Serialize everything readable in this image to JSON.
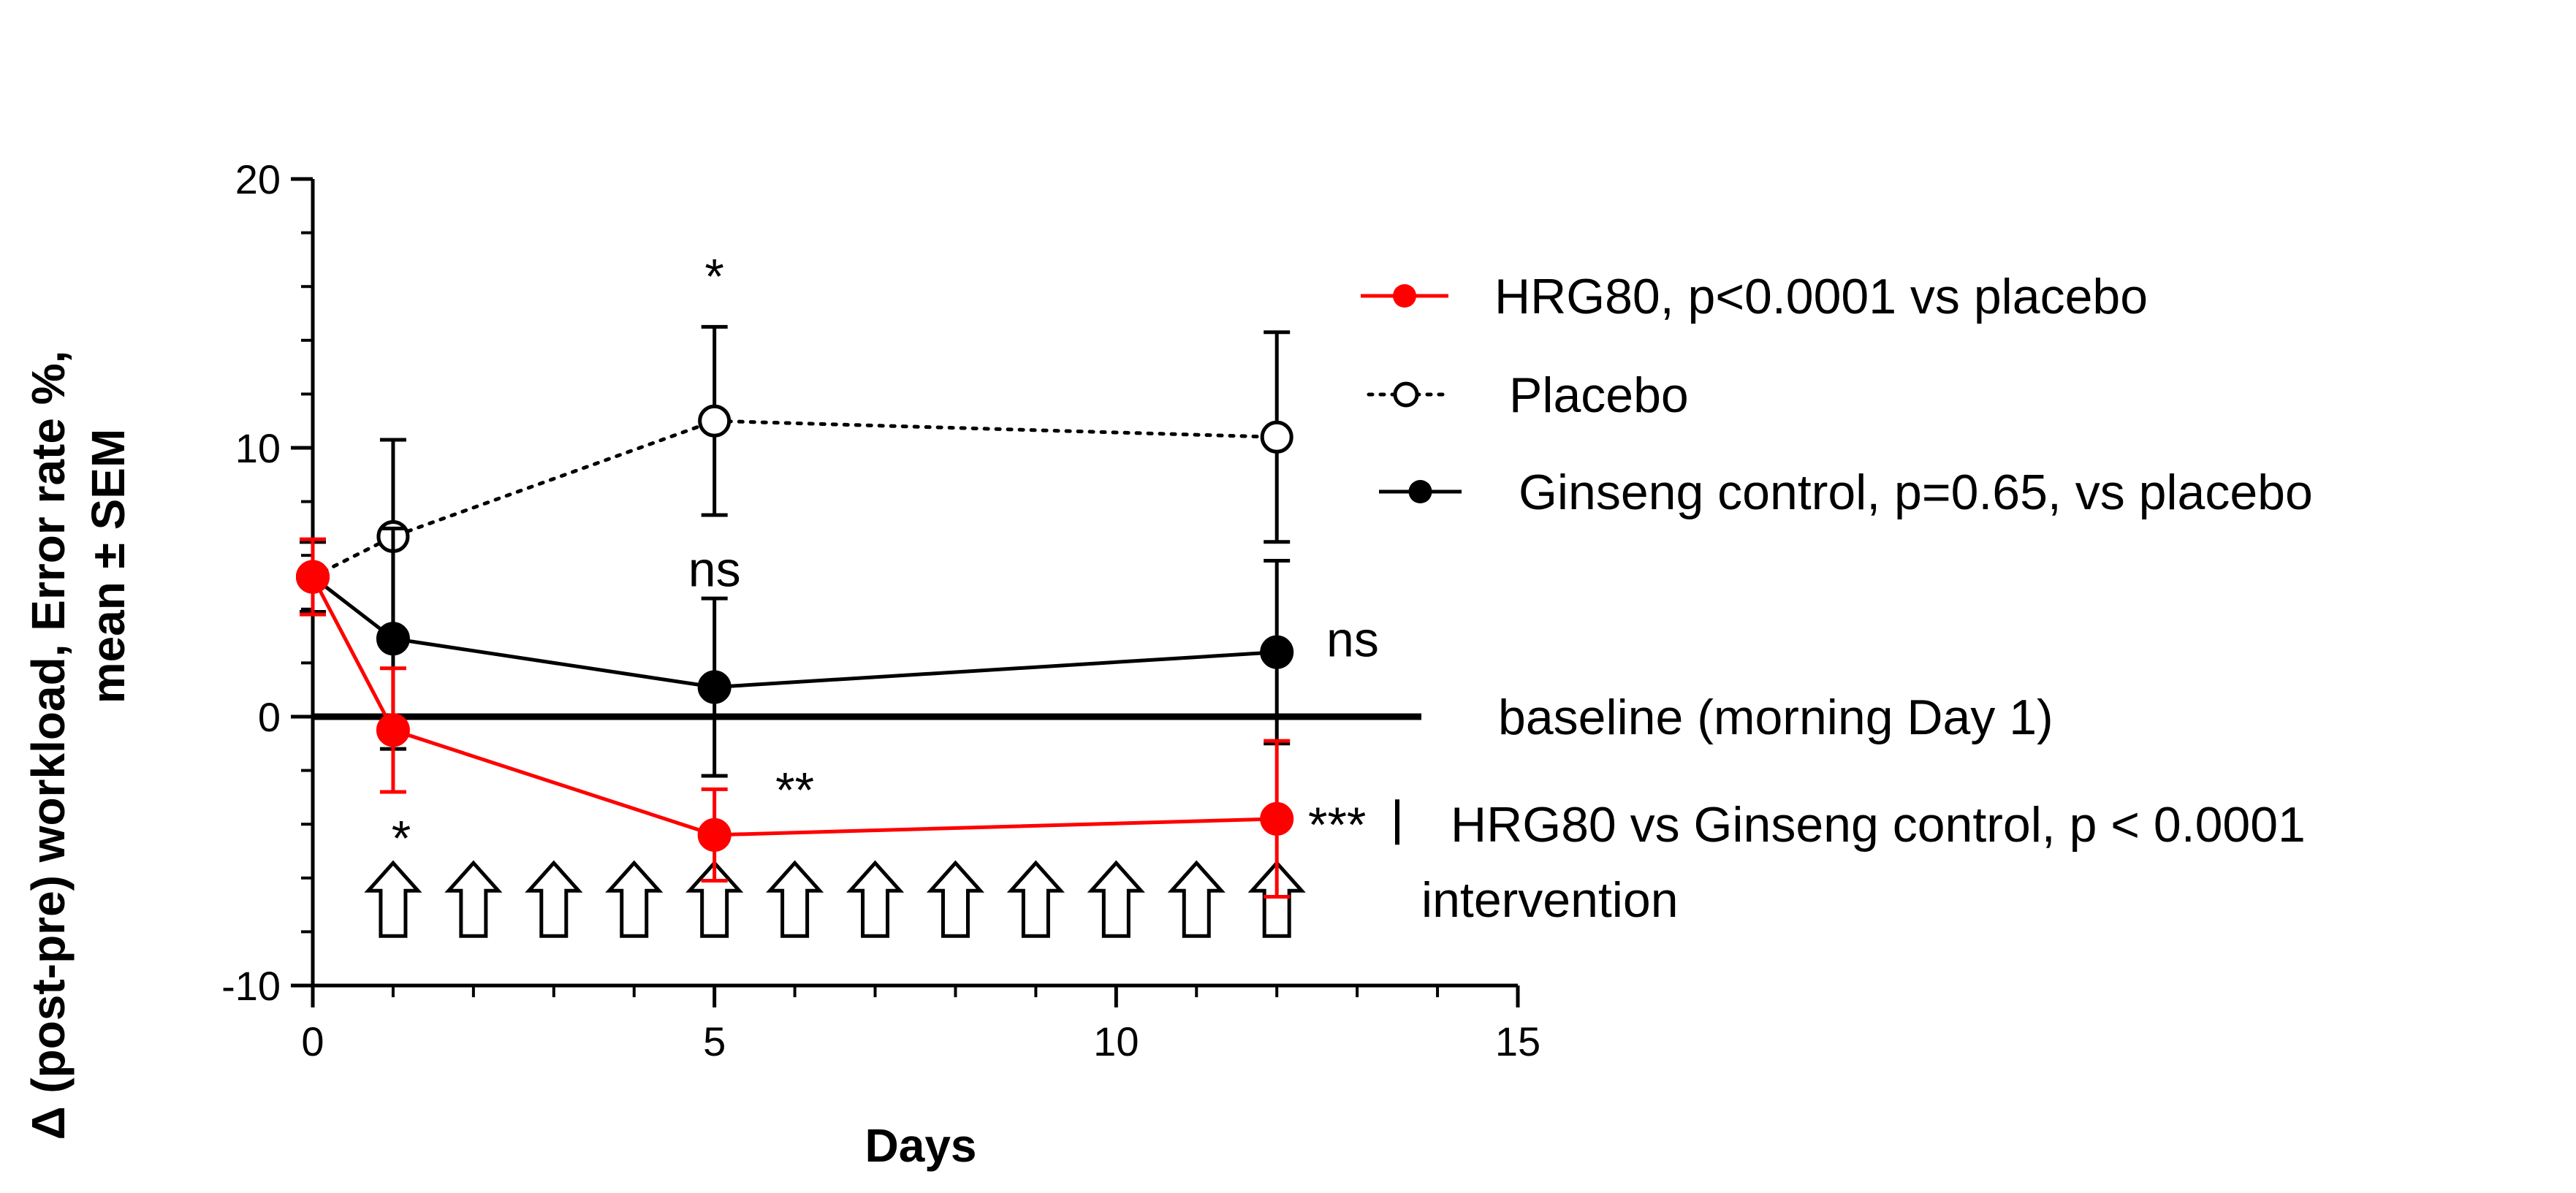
{
  "chart_data": {
    "type": "line",
    "xlabel": "Days",
    "ylabel_line1": "Δ (post-pre) workload, Error rate %,",
    "ylabel_line2": "mean ± SEM",
    "xlim": [
      0,
      15
    ],
    "ylim": [
      -10,
      20
    ],
    "xticks": [
      0,
      5,
      10,
      15
    ],
    "xticks_minor": [
      1,
      2,
      3,
      4,
      6,
      7,
      8,
      9,
      11,
      12,
      13,
      14
    ],
    "yticks": [
      -10,
      0,
      10,
      20
    ],
    "yticks_minor": [
      -8,
      -6,
      -4,
      -2,
      2,
      4,
      6,
      8,
      12,
      14,
      16,
      18
    ],
    "series": [
      {
        "name": "HRG80, p<0.0001 vs placebo",
        "color": "#ff0000",
        "line": "solid",
        "marker": "filled",
        "x": [
          0,
          1,
          5,
          12
        ],
        "y": [
          5.2,
          -0.5,
          -4.4,
          -3.8
        ],
        "sem": [
          1.4,
          2.3,
          1.7,
          2.9
        ]
      },
      {
        "name": "Placebo",
        "color": "#000000",
        "line": "dotted",
        "marker": "open",
        "x": [
          0,
          1,
          5,
          12
        ],
        "y": [
          5.2,
          6.7,
          11.0,
          10.4
        ],
        "sem": [
          1.3,
          3.6,
          3.5,
          3.9
        ]
      },
      {
        "name": "Ginseng control, p=0.65, vs placebo",
        "color": "#000000",
        "line": "solid",
        "marker": "filled",
        "x": [
          0,
          1,
          5,
          12
        ],
        "y": [
          5.2,
          2.9,
          1.1,
          2.4
        ],
        "sem": [
          1.3,
          4.1,
          3.3,
          3.4
        ]
      }
    ],
    "baseline": {
      "y": 0,
      "label": "baseline (morning Day 1)"
    },
    "interventions": {
      "days": [
        1,
        2,
        3,
        4,
        5,
        6,
        7,
        8,
        9,
        10,
        11,
        12
      ],
      "label": "intervention"
    },
    "annotations": [
      {
        "text": "*",
        "x": 5,
        "y": 16.4,
        "color": "#000000"
      },
      {
        "text": "ns",
        "x": 5,
        "y": 5.5,
        "color": "#000000"
      },
      {
        "text": "ns",
        "x": 13.1,
        "y": 2.9,
        "color": "#000000"
      },
      {
        "text": "*",
        "x": 1.1,
        "y": -4.5,
        "color": "#000000"
      },
      {
        "text": "**",
        "x": 6.0,
        "y": -2.7,
        "color": "#000000"
      },
      {
        "text": "***",
        "x": 12.9,
        "y": -4.0,
        "color": "#000000"
      },
      {
        "text": "HRG80 vs Ginseng control, p < 0.0001",
        "x": 14.0,
        "y": -4.0,
        "color": "#ff0000"
      }
    ]
  }
}
